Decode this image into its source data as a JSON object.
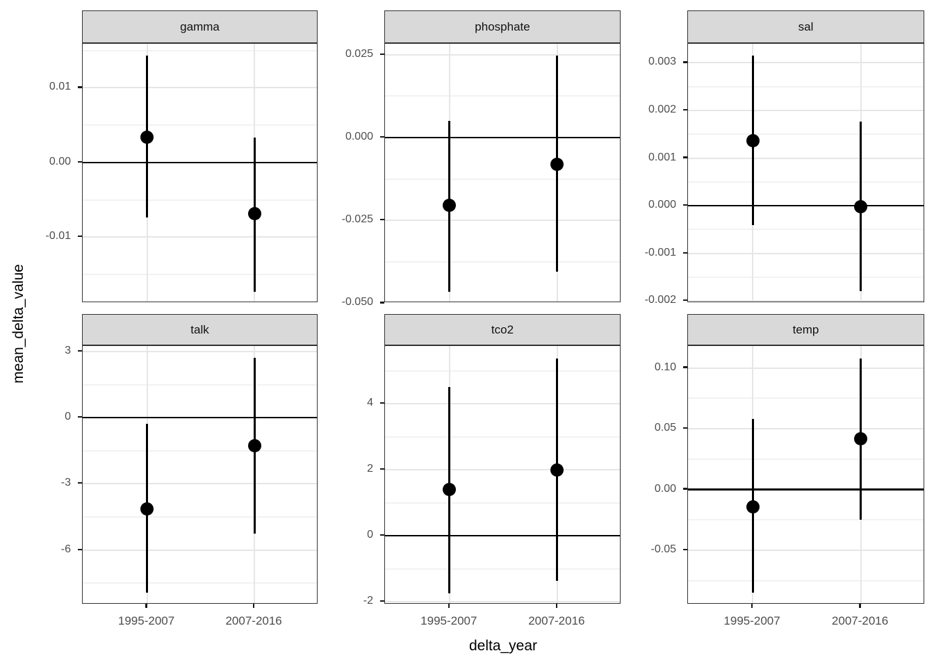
{
  "figure": {
    "y_axis_title": "mean_delta_value",
    "x_axis_title": "delta_year"
  },
  "style": {
    "background": "#ffffff",
    "strip_fill": "#d9d9d9",
    "strip_border": "#333333",
    "panel_border": "#333333",
    "grid_major_color": "#e6e6e6",
    "grid_minor_color": "#f2f2f2",
    "tick_label_color": "#4d4d4d",
    "axis_title_color": "#000000",
    "data_color": "#000000"
  },
  "chart_data": {
    "type": "scatter",
    "subtype": "pointrange-facets",
    "xlabel": "delta_year",
    "ylabel": "mean_delta_value",
    "categories": [
      "1995-2007",
      "2007-2016"
    ],
    "hline": 0,
    "legend": "none",
    "grid": "on",
    "facets": [
      {
        "facet": "gamma",
        "ylim": [
          -0.0188,
          0.0159
        ],
        "yticks": [
          {
            "v": 0.01,
            "label": "0.01"
          },
          {
            "v": 0.0,
            "label": "0.00"
          },
          {
            "v": -0.01,
            "label": "-0.01"
          }
        ],
        "series": [
          {
            "x": "1995-2007",
            "y": 0.0034,
            "ymin": -0.0074,
            "ymax": 0.0143
          },
          {
            "x": "2007-2016",
            "y": -0.0068,
            "ymin": -0.0173,
            "ymax": 0.0033
          }
        ]
      },
      {
        "facet": "phosphate",
        "ylim": [
          -0.0499,
          0.0283
        ],
        "yticks": [
          {
            "v": 0.025,
            "label": "0.025"
          },
          {
            "v": 0.0,
            "label": "0.000"
          },
          {
            "v": -0.025,
            "label": "-0.025"
          },
          {
            "v": -0.05,
            "label": "-0.050"
          }
        ],
        "series": [
          {
            "x": "1995-2007",
            "y": -0.0205,
            "ymin": -0.0465,
            "ymax": 0.005
          },
          {
            "x": "2007-2016",
            "y": -0.008,
            "ymin": -0.0405,
            "ymax": 0.0247
          }
        ]
      },
      {
        "facet": "sal",
        "ylim": [
          -0.00204,
          0.0034
        ],
        "yticks": [
          {
            "v": 0.003,
            "label": "0.003"
          },
          {
            "v": 0.002,
            "label": "0.002"
          },
          {
            "v": 0.001,
            "label": "0.001"
          },
          {
            "v": 0.0,
            "label": "0.000"
          },
          {
            "v": -0.001,
            "label": "-0.001"
          },
          {
            "v": -0.002,
            "label": "-0.002"
          }
        ],
        "series": [
          {
            "x": "1995-2007",
            "y": 0.00137,
            "ymin": -0.00041,
            "ymax": 0.00315
          },
          {
            "x": "2007-2016",
            "y": -2e-05,
            "ymin": -0.00179,
            "ymax": 0.00177
          }
        ]
      },
      {
        "facet": "talk",
        "ylim": [
          -8.47,
          3.25
        ],
        "yticks": [
          {
            "v": 3,
            "label": "3"
          },
          {
            "v": 0,
            "label": "0"
          },
          {
            "v": -3,
            "label": "-3"
          },
          {
            "v": -6,
            "label": "-6"
          }
        ],
        "series": [
          {
            "x": "1995-2007",
            "y": -4.15,
            "ymin": -7.95,
            "ymax": -0.28
          },
          {
            "x": "2007-2016",
            "y": -1.26,
            "ymin": -5.25,
            "ymax": 2.72
          }
        ]
      },
      {
        "facet": "tco2",
        "ylim": [
          -2.08,
          5.75
        ],
        "yticks": [
          {
            "v": 4,
            "label": "4"
          },
          {
            "v": 2,
            "label": "2"
          },
          {
            "v": 0,
            "label": "0"
          },
          {
            "v": -2,
            "label": "-2"
          }
        ],
        "series": [
          {
            "x": "1995-2007",
            "y": 1.4,
            "ymin": -1.75,
            "ymax": 4.5
          },
          {
            "x": "2007-2016",
            "y": 2.0,
            "ymin": -1.37,
            "ymax": 5.38
          }
        ]
      },
      {
        "facet": "temp",
        "ylim": [
          -0.0945,
          0.118
        ],
        "yticks": [
          {
            "v": 0.1,
            "label": "0.10"
          },
          {
            "v": 0.05,
            "label": "0.05"
          },
          {
            "v": 0.0,
            "label": "0.00"
          },
          {
            "v": -0.05,
            "label": "-0.05"
          }
        ],
        "series": [
          {
            "x": "1995-2007",
            "y": -0.014,
            "ymin": -0.085,
            "ymax": 0.058
          },
          {
            "x": "2007-2016",
            "y": 0.042,
            "ymin": -0.025,
            "ymax": 0.108
          }
        ]
      }
    ]
  }
}
